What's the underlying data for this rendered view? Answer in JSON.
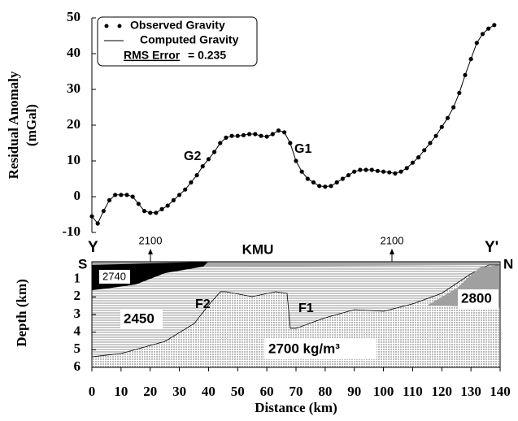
{
  "chart_data": [
    {
      "type": "line",
      "ylabel": [
        "Residual Anomaly",
        "(mGal)"
      ],
      "x": [
        0,
        2,
        4,
        6,
        8,
        10,
        12,
        14,
        16,
        18,
        20,
        22,
        24,
        26,
        28,
        30,
        32,
        34,
        36,
        38,
        40,
        42,
        44,
        46,
        48,
        50,
        52,
        54,
        56,
        58,
        60,
        62,
        64,
        66,
        68,
        70,
        72,
        74,
        76,
        78,
        80,
        82,
        84,
        86,
        88,
        90,
        92,
        94,
        96,
        98,
        100,
        102,
        104,
        106,
        108,
        110,
        112,
        114,
        116,
        118,
        120,
        122,
        124,
        126,
        128,
        130,
        132,
        134,
        136,
        138
      ],
      "series": [
        {
          "name": "Observed Gravity",
          "color": "#000000",
          "marker": "dot",
          "values": [
            -5.5,
            -7.5,
            -4,
            -1,
            0.5,
            0.5,
            0.5,
            0,
            -2,
            -4,
            -4.5,
            -4.5,
            -3.5,
            -2.5,
            -1,
            0.5,
            2,
            4,
            6,
            8.5,
            10.5,
            12.5,
            15,
            16.5,
            17,
            17,
            17.2,
            17.5,
            17.5,
            17,
            16.8,
            17.5,
            18.5,
            18,
            15,
            10,
            7,
            5,
            4,
            3,
            2.8,
            3,
            4,
            5,
            6,
            7,
            7.5,
            7.5,
            7.5,
            7.2,
            7,
            6.8,
            6.5,
            7,
            8,
            9.5,
            11,
            13,
            15,
            17,
            19.5,
            22,
            25,
            29,
            34,
            38.5,
            43,
            45.5,
            47,
            48
          ]
        },
        {
          "name": "Computed Gravity",
          "color": "#000000",
          "marker": "line",
          "values": [
            -5.5,
            -7.5,
            -4,
            -1,
            0.5,
            0.5,
            0.5,
            0,
            -2,
            -4,
            -4.5,
            -4.5,
            -3.5,
            -2.5,
            -1,
            0.5,
            2,
            4,
            6,
            8.5,
            10.5,
            12.5,
            15,
            16.5,
            17,
            17,
            17.2,
            17.5,
            17.5,
            17,
            16.8,
            17.5,
            18.5,
            18,
            15,
            10,
            7,
            5,
            4,
            3,
            2.8,
            3,
            4,
            5,
            6,
            7,
            7.5,
            7.5,
            7.5,
            7.2,
            7,
            6.8,
            6.5,
            7,
            8,
            9.5,
            11,
            13,
            15,
            17,
            19.5,
            22,
            25,
            29,
            34,
            38.5,
            43,
            45.5,
            47,
            48
          ]
        }
      ],
      "rms_label": "RMS Error",
      "rms_value": "= 0.235",
      "annotations": [
        "G2",
        "G1"
      ],
      "xlim": [
        0,
        140
      ],
      "ylim": [
        -10,
        50
      ],
      "yticks": [
        -10,
        0,
        10,
        20,
        30,
        40,
        50
      ]
    },
    {
      "type": "cross-section",
      "xlabel": "Distance (km)",
      "ylabel": "Depth (km)",
      "xlim": [
        0,
        140
      ],
      "ylim": [
        0,
        6
      ],
      "xticks": [
        0,
        10,
        20,
        30,
        40,
        50,
        60,
        70,
        80,
        90,
        100,
        110,
        120,
        130,
        140
      ],
      "yticks": [
        1,
        2,
        3,
        4,
        5,
        6
      ],
      "labels": {
        "left_end": "Y",
        "right_end": "Y'",
        "south": "S",
        "north": "N",
        "kmu": "KMU",
        "stations": [
          "2100",
          "2100"
        ],
        "faults": [
          "F2",
          "F1"
        ],
        "bodies": [
          "2740",
          "2450",
          "2800",
          "2700 kg/m³"
        ]
      }
    }
  ]
}
